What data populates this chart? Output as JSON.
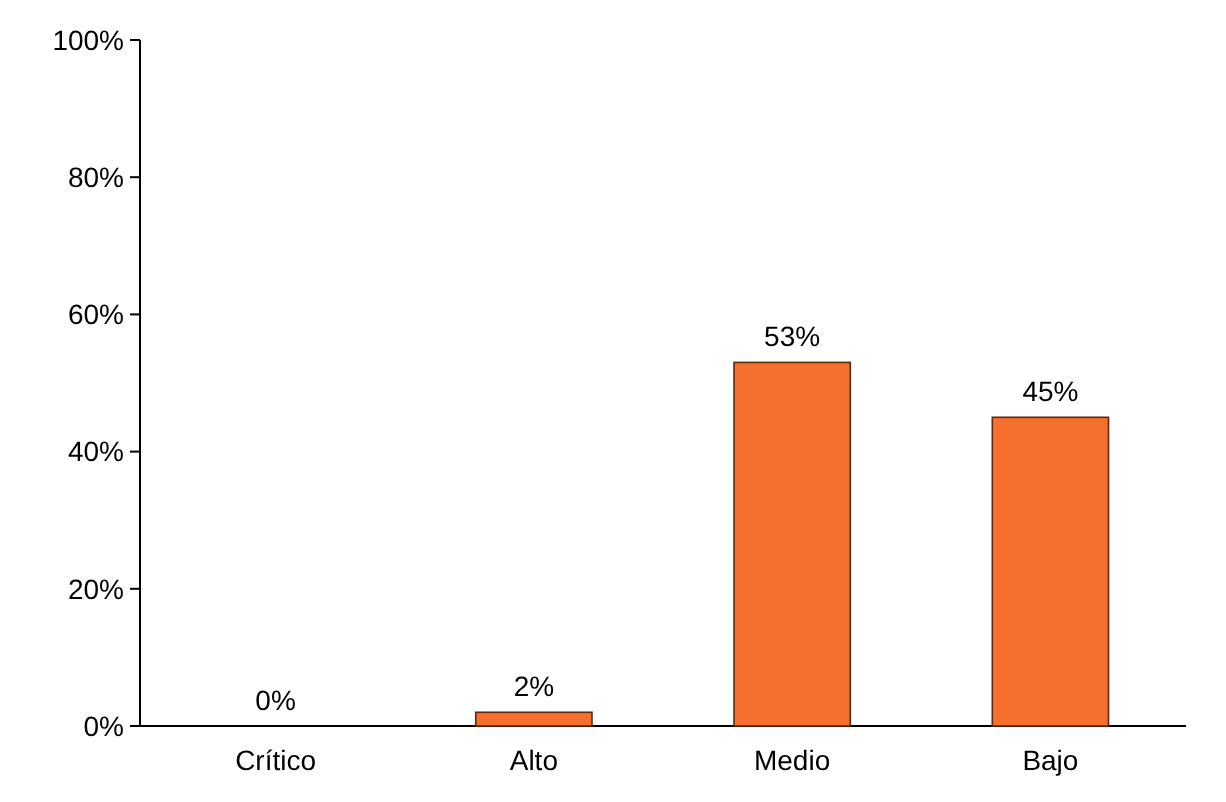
{
  "chart_data": {
    "type": "bar",
    "categories": [
      "Crítico",
      "Alto",
      "Medio",
      "Bajo"
    ],
    "values": [
      0,
      2,
      53,
      45
    ],
    "value_labels": [
      "0%",
      "2%",
      "53%",
      "45%"
    ],
    "color": "#f5702e",
    "ylim": [
      0,
      100
    ],
    "yticks": [
      {
        "value": 0,
        "label": "0%"
      },
      {
        "value": 20,
        "label": "20%"
      },
      {
        "value": 40,
        "label": "40%"
      },
      {
        "value": 60,
        "label": "60%"
      },
      {
        "value": 80,
        "label": "80%"
      },
      {
        "value": 100,
        "label": "100%"
      }
    ],
    "grid": false
  }
}
